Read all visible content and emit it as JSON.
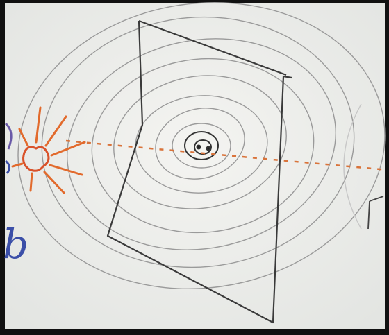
{
  "handwriting": [
    "b"
  ]
}
